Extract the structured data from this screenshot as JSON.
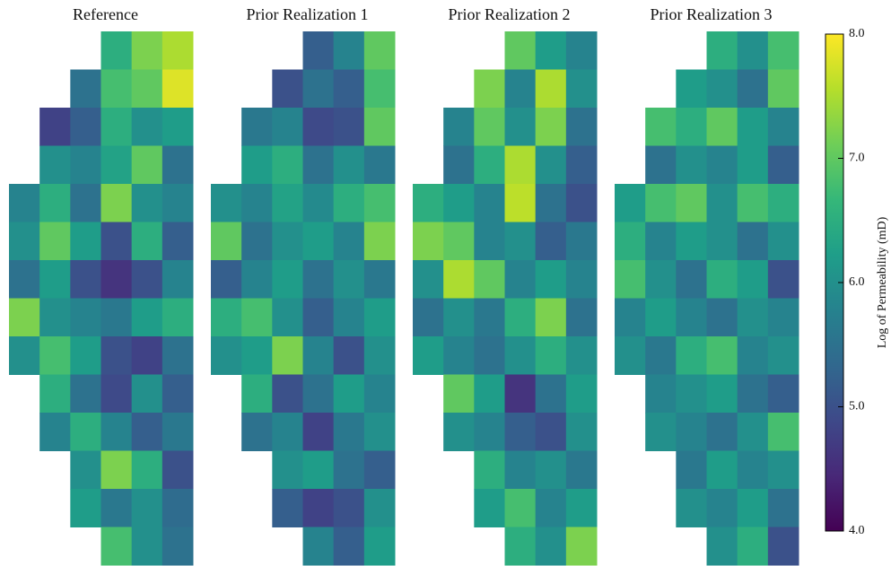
{
  "chart_data": [
    {
      "type": "heatmap",
      "title": "Reference",
      "values": [
        [
          null,
          null,
          null,
          6.5,
          7.2,
          7.5
        ],
        [
          null,
          null,
          5.5,
          6.8,
          7.0,
          7.8
        ],
        [
          null,
          4.8,
          5.2,
          6.5,
          6.0,
          6.2
        ],
        [
          null,
          6.0,
          5.8,
          6.3,
          7.0,
          5.5
        ],
        [
          5.8,
          6.5,
          5.5,
          7.2,
          6.0,
          5.8
        ],
        [
          6.0,
          7.0,
          6.2,
          5.0,
          6.5,
          5.2
        ],
        [
          5.5,
          6.2,
          5.0,
          4.6,
          5.0,
          5.8
        ],
        [
          7.2,
          6.0,
          5.8,
          5.6,
          6.2,
          6.5
        ],
        [
          6.0,
          6.8,
          6.2,
          5.0,
          4.8,
          5.5
        ],
        [
          null,
          6.5,
          5.5,
          4.9,
          6.0,
          5.2
        ],
        [
          null,
          5.8,
          6.5,
          5.8,
          5.2,
          5.6
        ],
        [
          null,
          null,
          6.0,
          7.2,
          6.5,
          5.0
        ],
        [
          null,
          null,
          6.2,
          5.6,
          6.0,
          5.4
        ],
        [
          null,
          null,
          null,
          6.8,
          6.0,
          5.5
        ]
      ]
    },
    {
      "type": "heatmap",
      "title": "Prior Realization 1",
      "values": [
        [
          null,
          null,
          null,
          5.2,
          5.8,
          7.0
        ],
        [
          null,
          null,
          5.0,
          5.5,
          5.2,
          6.8
        ],
        [
          null,
          5.6,
          5.8,
          4.9,
          5.0,
          7.0
        ],
        [
          null,
          6.2,
          6.5,
          5.5,
          6.0,
          5.6
        ],
        [
          6.0,
          5.8,
          6.3,
          5.9,
          6.5,
          6.8
        ],
        [
          7.0,
          5.5,
          6.0,
          6.2,
          5.8,
          7.2
        ],
        [
          5.2,
          5.8,
          6.2,
          5.5,
          6.0,
          5.6
        ],
        [
          6.5,
          6.8,
          6.0,
          5.2,
          5.8,
          6.2
        ],
        [
          6.0,
          6.2,
          7.2,
          5.8,
          5.0,
          6.0
        ],
        [
          null,
          6.5,
          5.0,
          5.5,
          6.2,
          5.8
        ],
        [
          null,
          5.5,
          5.8,
          4.8,
          5.6,
          6.0
        ],
        [
          null,
          null,
          6.0,
          6.2,
          5.5,
          5.2
        ],
        [
          null,
          null,
          5.2,
          4.8,
          5.0,
          6.0
        ],
        [
          null,
          null,
          null,
          5.8,
          5.2,
          6.2
        ]
      ]
    },
    {
      "type": "heatmap",
      "title": "Prior Realization 2",
      "values": [
        [
          null,
          null,
          null,
          7.0,
          6.2,
          5.8
        ],
        [
          null,
          null,
          7.2,
          5.8,
          7.5,
          6.0
        ],
        [
          null,
          5.8,
          7.0,
          6.0,
          7.2,
          5.5
        ],
        [
          null,
          5.5,
          6.5,
          7.5,
          6.0,
          5.2
        ],
        [
          6.5,
          6.2,
          5.8,
          7.6,
          5.5,
          5.0
        ],
        [
          7.2,
          7.0,
          5.8,
          6.0,
          5.2,
          5.6
        ],
        [
          6.0,
          7.5,
          7.0,
          5.8,
          6.2,
          5.8
        ],
        [
          5.5,
          6.0,
          5.6,
          6.5,
          7.2,
          5.5
        ],
        [
          6.2,
          5.8,
          5.5,
          6.0,
          6.5,
          6.0
        ],
        [
          null,
          7.0,
          6.2,
          4.6,
          5.5,
          6.2
        ],
        [
          null,
          6.0,
          5.8,
          5.2,
          5.0,
          6.0
        ],
        [
          null,
          null,
          6.5,
          5.8,
          6.0,
          5.6
        ],
        [
          null,
          null,
          6.2,
          6.8,
          5.8,
          6.2
        ],
        [
          null,
          null,
          null,
          6.5,
          6.0,
          7.2
        ]
      ]
    },
    {
      "type": "heatmap",
      "title": "Prior Realization 3",
      "values": [
        [
          null,
          null,
          null,
          6.5,
          6.0,
          6.8
        ],
        [
          null,
          null,
          6.2,
          6.0,
          5.5,
          7.0
        ],
        [
          null,
          6.8,
          6.5,
          7.0,
          6.2,
          5.8
        ],
        [
          null,
          5.5,
          6.0,
          5.8,
          6.2,
          5.2
        ],
        [
          6.2,
          6.8,
          7.0,
          6.0,
          6.8,
          6.5
        ],
        [
          6.5,
          5.8,
          6.2,
          6.0,
          5.5,
          6.0
        ],
        [
          6.8,
          6.0,
          5.5,
          6.5,
          6.2,
          5.0
        ],
        [
          5.8,
          6.2,
          5.8,
          5.5,
          6.0,
          5.8
        ],
        [
          6.0,
          5.6,
          6.5,
          6.8,
          5.8,
          6.0
        ],
        [
          null,
          5.8,
          6.0,
          6.2,
          5.5,
          5.2
        ],
        [
          null,
          6.0,
          5.8,
          5.5,
          6.0,
          6.8
        ],
        [
          null,
          null,
          5.6,
          6.2,
          5.8,
          6.0
        ],
        [
          null,
          null,
          6.0,
          5.8,
          6.2,
          5.5
        ],
        [
          null,
          null,
          null,
          6.0,
          6.5,
          5.0
        ]
      ]
    }
  ],
  "colorbar": {
    "label": "Log of Permeability (mD)",
    "colormap": "viridis",
    "zlim": [
      4,
      8
    ],
    "zticks": [
      {
        "value": 4,
        "label": "4.0"
      },
      {
        "value": 5,
        "label": "5.0"
      },
      {
        "value": 6,
        "label": "6.0"
      },
      {
        "value": 7,
        "label": "7.0"
      },
      {
        "value": 8,
        "label": "8.0"
      }
    ]
  }
}
